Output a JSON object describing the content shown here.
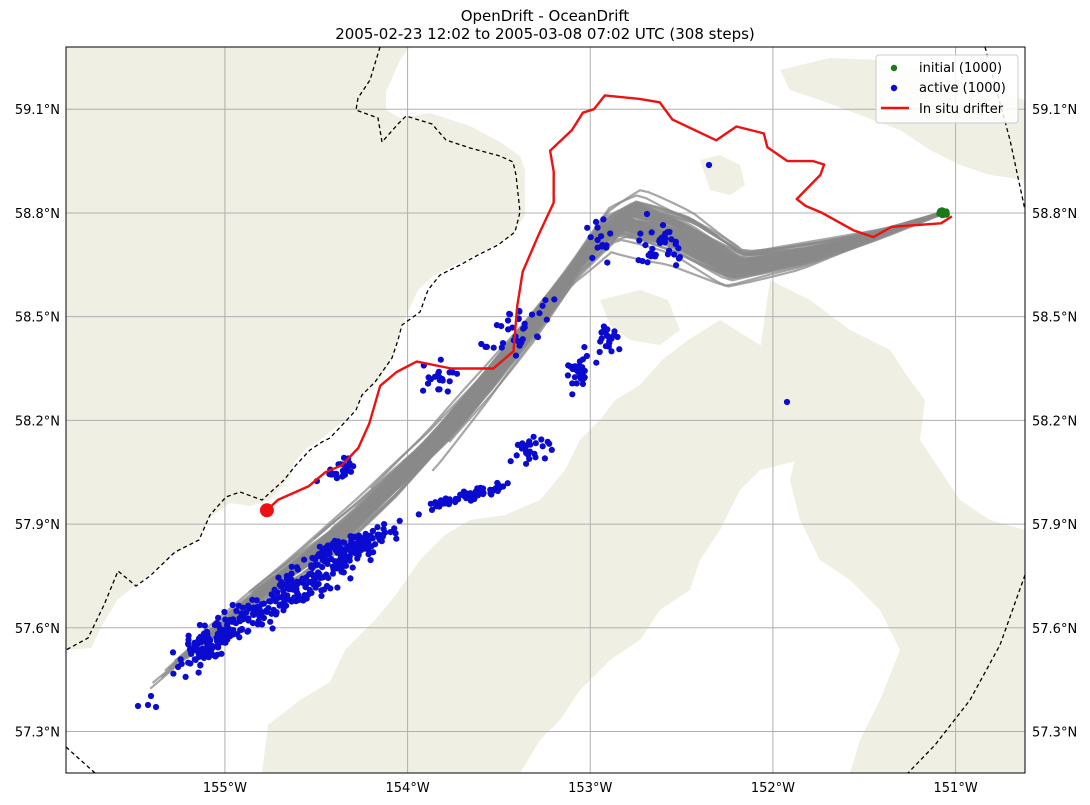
{
  "title": {
    "line1": "OpenDrift - OceanDrift",
    "line2": "2005-02-23 12:02 to 2005-03-08 07:02 UTC (308 steps)"
  },
  "colors": {
    "land": "#efefe3",
    "trajectories": "#8a8a8a",
    "trajectory_outer": "#c4c4c4",
    "initial": "#1a7a1a",
    "active": "#0a0ad0",
    "drifter": "#ee1111",
    "border": "#000000",
    "grid": "#b0b0b0"
  },
  "map": {
    "lon_range": [
      -155.87,
      -150.62
    ],
    "lat_range": [
      57.18,
      59.28
    ],
    "lat_ticks": [
      "59.1°N",
      "58.8°N",
      "58.5°N",
      "58.2°N",
      "57.9°N",
      "57.6°N",
      "57.3°N"
    ],
    "lon_ticks": [
      "155°W",
      "154°W",
      "153°W",
      "152°W",
      "151°W"
    ],
    "grid": true
  },
  "legend": {
    "placement": "top-right",
    "items": [
      {
        "label": "initial (1000)",
        "kind": "point",
        "color": "#1a7a1a"
      },
      {
        "label": "active (1000)",
        "kind": "point",
        "color": "#0a0ad0"
      },
      {
        "label": "In situ drifter",
        "kind": "line",
        "color": "#ee1111"
      }
    ]
  },
  "initial_position": {
    "lon": -151.07,
    "lat": 58.8
  },
  "drifter_end": {
    "lon": -154.77,
    "lat": 57.94
  },
  "drifter_track": [
    [
      -151.02,
      58.79
    ],
    [
      -151.08,
      58.77
    ],
    [
      -151.35,
      58.76
    ],
    [
      -151.45,
      58.73
    ],
    [
      -151.56,
      58.75
    ],
    [
      -151.73,
      58.8
    ],
    [
      -151.82,
      58.82
    ],
    [
      -151.87,
      58.84
    ],
    [
      -151.74,
      58.91
    ],
    [
      -151.72,
      58.94
    ],
    [
      -151.78,
      58.95
    ],
    [
      -151.92,
      58.95
    ],
    [
      -152.03,
      58.99
    ],
    [
      -152.05,
      59.03
    ],
    [
      -152.2,
      59.05
    ],
    [
      -152.31,
      59.01
    ],
    [
      -152.55,
      59.07
    ],
    [
      -152.62,
      59.12
    ],
    [
      -152.73,
      59.13
    ],
    [
      -152.92,
      59.14
    ],
    [
      -152.98,
      59.1
    ],
    [
      -153.04,
      59.09
    ],
    [
      -153.1,
      59.04
    ],
    [
      -153.22,
      58.98
    ],
    [
      -153.2,
      58.92
    ],
    [
      -153.2,
      58.83
    ],
    [
      -153.28,
      58.74
    ],
    [
      -153.37,
      58.63
    ],
    [
      -153.4,
      58.53
    ],
    [
      -153.42,
      58.4
    ],
    [
      -153.53,
      58.35
    ],
    [
      -153.76,
      58.35
    ],
    [
      -153.95,
      58.37
    ],
    [
      -154.06,
      58.34
    ],
    [
      -154.15,
      58.3
    ],
    [
      -154.21,
      58.19
    ],
    [
      -154.27,
      58.12
    ],
    [
      -154.36,
      58.07
    ],
    [
      -154.45,
      58.05
    ],
    [
      -154.54,
      58.01
    ],
    [
      -154.71,
      57.97
    ],
    [
      -154.77,
      57.94
    ]
  ],
  "trajectory_band": {
    "spine": [
      [
        -151.07,
        58.8
      ],
      [
        -151.4,
        58.74
      ],
      [
        -151.8,
        58.68
      ],
      [
        -152.2,
        58.64
      ],
      [
        -152.5,
        58.73
      ],
      [
        -152.8,
        58.78
      ],
      [
        -153.0,
        58.7
      ],
      [
        -153.2,
        58.55
      ],
      [
        -153.45,
        58.38
      ],
      [
        -153.7,
        58.22
      ],
      [
        -154.0,
        58.05
      ],
      [
        -154.35,
        57.88
      ],
      [
        -154.65,
        57.76
      ],
      [
        -154.95,
        57.64
      ],
      [
        -155.2,
        57.53
      ],
      [
        -155.4,
        57.44
      ]
    ],
    "width_deg": [
      0.05,
      0.07,
      0.12,
      0.12,
      0.14,
      0.16,
      0.22,
      0.24,
      0.26,
      0.26,
      0.22,
      0.2,
      0.16,
      0.13,
      0.1,
      0.07
    ]
  }
}
